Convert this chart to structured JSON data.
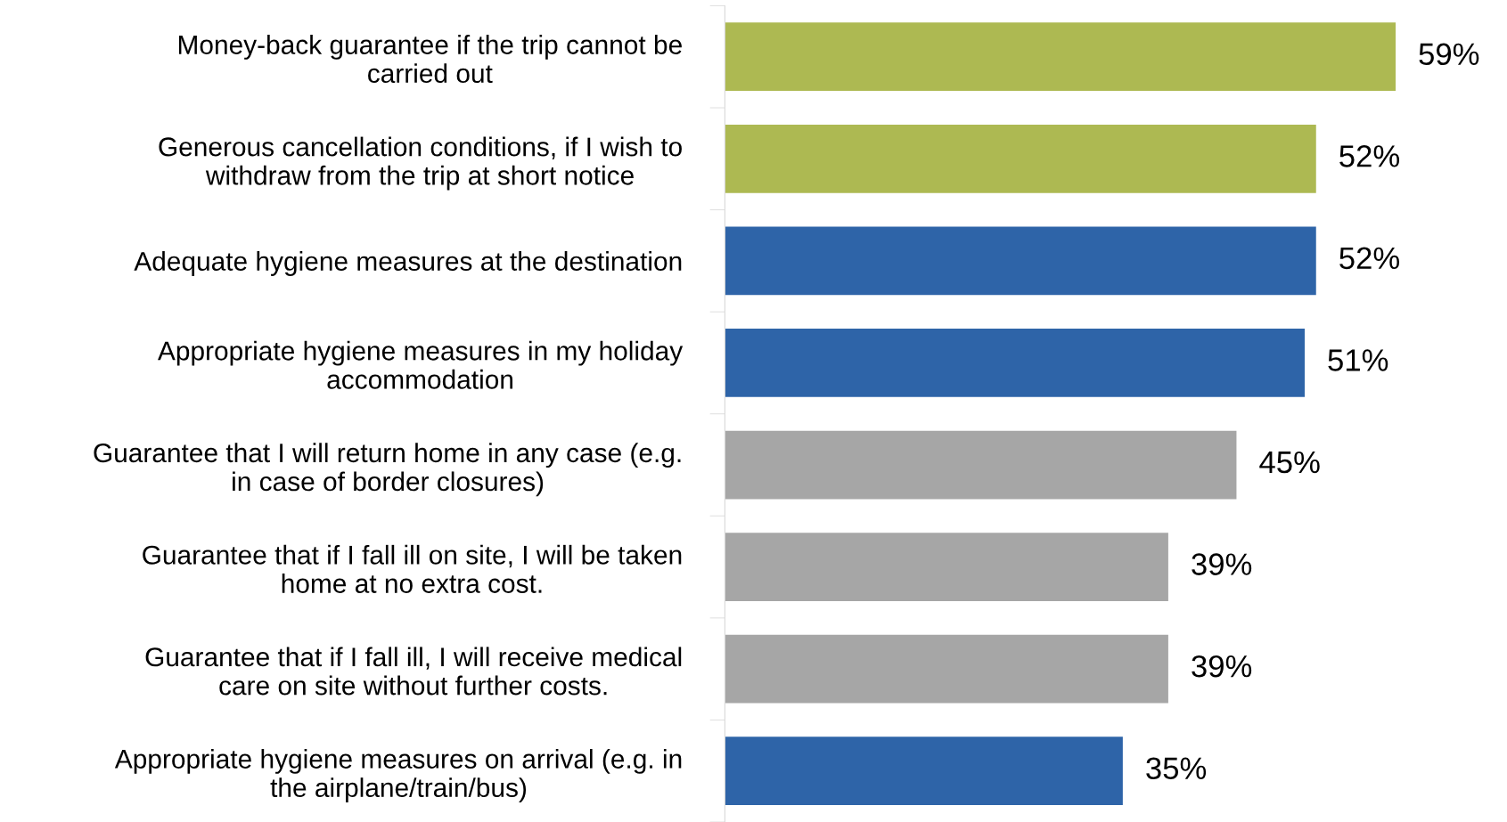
{
  "chart_data": {
    "type": "bar",
    "orientation": "horizontal",
    "categories": [
      "Money-back guarantee if the trip cannot be\ncarried out",
      "Generous cancellation conditions, if I wish to\nwithdraw from the trip at short notice",
      "Adequate hygiene measures at the destination",
      "Appropriate hygiene measures in my holiday\naccommodation",
      "Guarantee that I will return home in any case (e.g.\nin case of border closures)",
      "Guarantee that if I fall ill on site, I will be taken\nhome at no extra cost.",
      "Guarantee that if I fall ill, I will receive medical\ncare on site without further costs.",
      "Appropriate hygiene measures on arrival (e.g. in\nthe airplane/train/bus)"
    ],
    "values": [
      59,
      52,
      52,
      51,
      45,
      39,
      39,
      35
    ],
    "colors": [
      "#adb952",
      "#adb952",
      "#2e64a8",
      "#2e64a8",
      "#a6a6a6",
      "#a6a6a6",
      "#a6a6a6",
      "#2e64a8"
    ],
    "value_labels": [
      "59%",
      "52%",
      "52%",
      "51%",
      "45%",
      "39%",
      "39%",
      "35%"
    ],
    "grid": false,
    "legend": false
  }
}
